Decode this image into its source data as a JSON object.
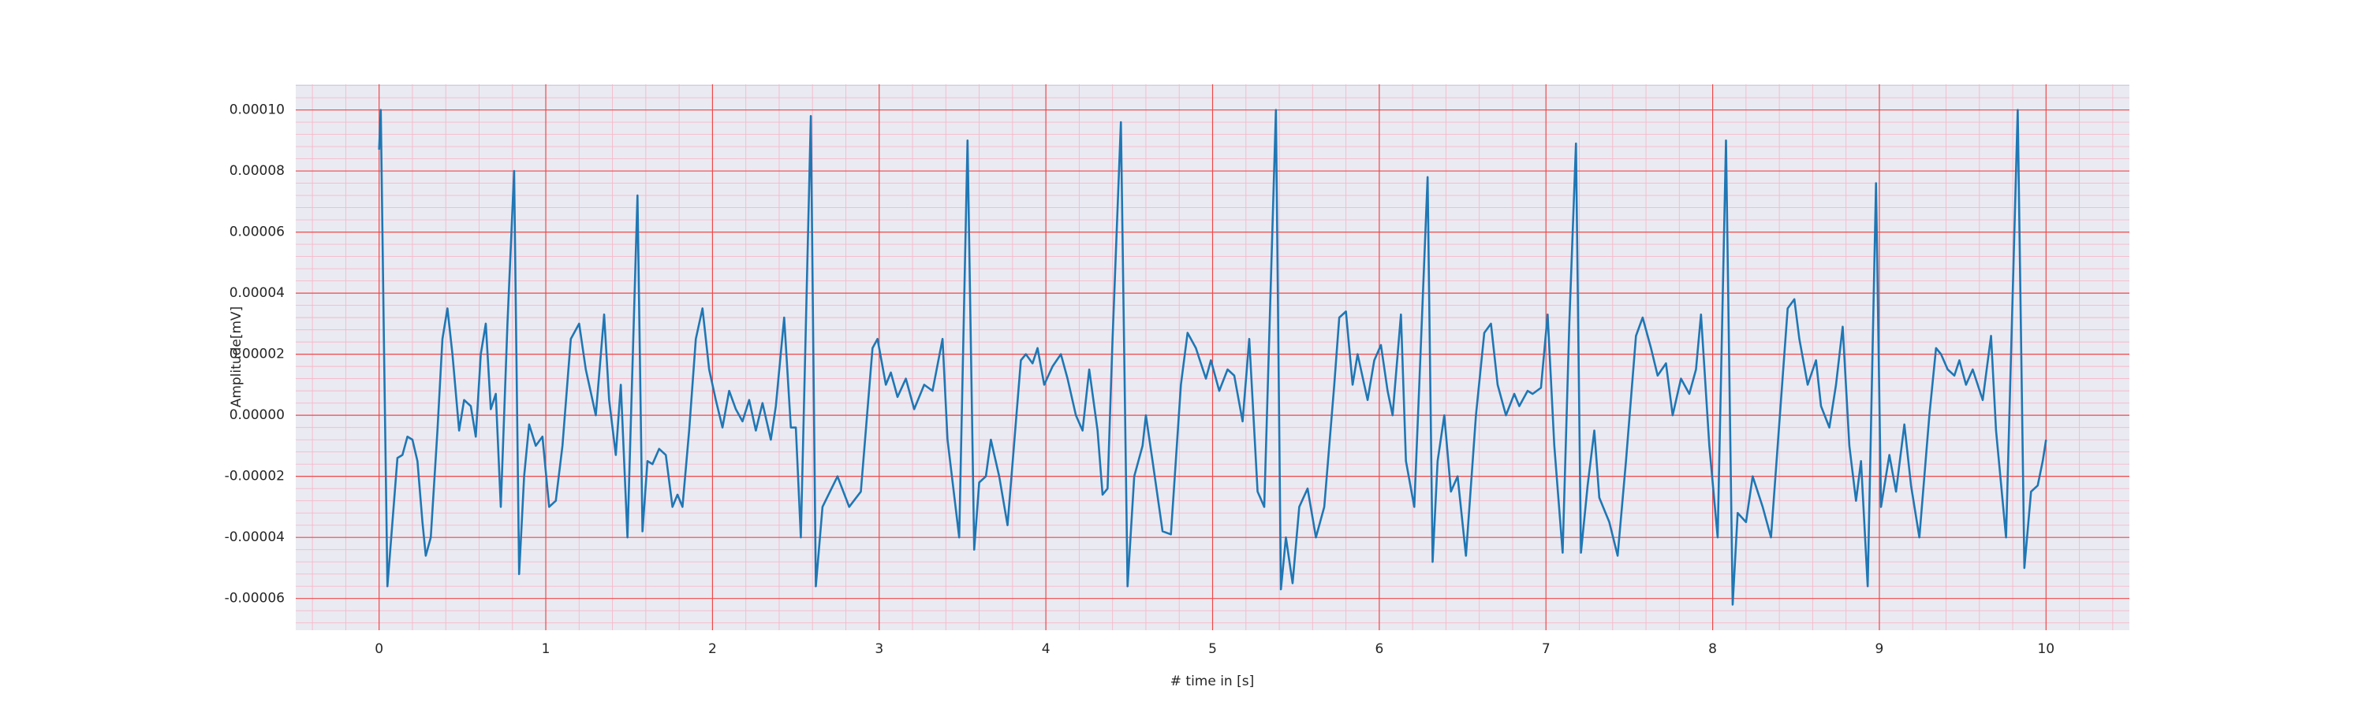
{
  "chart_data": {
    "type": "line",
    "xlabel": "# time in [s]",
    "ylabel": "Amplitude[mV]",
    "xlim": [
      -0.5,
      10.5
    ],
    "ylim": [
      -7.04e-05,
      0.0001084
    ],
    "xticks": [
      0,
      1,
      2,
      3,
      4,
      5,
      6,
      7,
      8,
      9,
      10
    ],
    "yticks": [
      {
        "value": -6e-05,
        "label": "-0.00006"
      },
      {
        "value": -4e-05,
        "label": "-0.00004"
      },
      {
        "value": -2e-05,
        "label": "-0.00002"
      },
      {
        "value": 0,
        "label": "0.00000"
      },
      {
        "value": 2e-05,
        "label": "0.00002"
      },
      {
        "value": 4e-05,
        "label": "0.00004"
      },
      {
        "value": 6e-05,
        "label": "0.00006"
      },
      {
        "value": 8e-05,
        "label": "0.00008"
      },
      {
        "value": 0.0001,
        "label": "0.00010"
      }
    ],
    "grid": true,
    "minor_divisions": 5,
    "color": "#1f77b4",
    "x": [
      0,
      0.01,
      0.03,
      0.05,
      0.08,
      0.11,
      0.14,
      0.17,
      0.2,
      0.23,
      0.26,
      0.28,
      0.31,
      0.35,
      0.38,
      0.41,
      0.44,
      0.48,
      0.51,
      0.55,
      0.58,
      0.61,
      0.64,
      0.67,
      0.7,
      0.73,
      0.77,
      0.81,
      0.84,
      0.87,
      0.9,
      0.94,
      0.98,
      1.02,
      1.06,
      1.1,
      1.15,
      1.2,
      1.24,
      1.28,
      1.3,
      1.35,
      1.38,
      1.42,
      1.45,
      1.49,
      1.55,
      1.58,
      1.61,
      1.64,
      1.68,
      1.72,
      1.76,
      1.79,
      1.82,
      1.86,
      1.9,
      1.94,
      1.98,
      2.02,
      2.06,
      2.1,
      2.14,
      2.18,
      2.22,
      2.26,
      2.3,
      2.35,
      2.38,
      2.43,
      2.47,
      2.5,
      2.53,
      2.59,
      2.62,
      2.66,
      2.75,
      2.82,
      2.89,
      2.96,
      2.99,
      3.04,
      3.07,
      3.11,
      3.16,
      3.21,
      3.27,
      3.32,
      3.38,
      3.41,
      3.48,
      3.53,
      3.57,
      3.6,
      3.64,
      3.67,
      3.72,
      3.77,
      3.85,
      3.88,
      3.92,
      3.95,
      3.99,
      4.04,
      4.09,
      4.13,
      4.18,
      4.22,
      4.26,
      4.31,
      4.34,
      4.37,
      4.4,
      4.45,
      4.49,
      4.53,
      4.58,
      4.6,
      4.64,
      4.7,
      4.75,
      4.81,
      4.85,
      4.9,
      4.96,
      4.99,
      5.04,
      5.09,
      5.13,
      5.18,
      5.22,
      5.27,
      5.31,
      5.38,
      5.41,
      5.44,
      5.48,
      5.52,
      5.57,
      5.62,
      5.67,
      5.73,
      5.76,
      5.8,
      5.84,
      5.87,
      5.93,
      5.97,
      6.01,
      6.05,
      6.08,
      6.13,
      6.16,
      6.21,
      6.24,
      6.29,
      6.32,
      6.35,
      6.39,
      6.43,
      6.47,
      6.52,
      6.58,
      6.63,
      6.67,
      6.71,
      6.76,
      6.81,
      6.84,
      6.89,
      6.92,
      6.97,
      7.01,
      7.05,
      7.1,
      7.14,
      7.18,
      7.21,
      7.25,
      7.29,
      7.32,
      7.38,
      7.43,
      7.48,
      7.54,
      7.58,
      7.63,
      7.67,
      7.72,
      7.76,
      7.81,
      7.86,
      7.9,
      7.93,
      7.98,
      8.03,
      8.08,
      8.12,
      8.15,
      8.2,
      8.24,
      8.3,
      8.35,
      8.41,
      8.45,
      8.49,
      8.52,
      8.57,
      8.62,
      8.65,
      8.7,
      8.74,
      8.78,
      8.82,
      8.86,
      8.89,
      8.93,
      8.98,
      9.01,
      9.06,
      9.1,
      9.15,
      9.19,
      9.24,
      9.3,
      9.34,
      9.37,
      9.41,
      9.45,
      9.48,
      9.52,
      9.56,
      9.62,
      9.67,
      9.7,
      9.76,
      9.83,
      9.87,
      9.91,
      9.95,
      9.98,
      10
    ],
    "values": [
      8.7e-05,
      0.0001,
      2e-05,
      -5.6e-05,
      -3.5e-05,
      -1.4e-05,
      -1.3e-05,
      -7e-06,
      -8e-06,
      -1.5e-05,
      -3.5e-05,
      -4.6e-05,
      -4e-05,
      -5e-06,
      2.5e-05,
      3.5e-05,
      2e-05,
      -5e-06,
      5e-06,
      3e-06,
      -7e-06,
      2e-05,
      3e-05,
      2e-06,
      7e-06,
      -3e-05,
      3e-05,
      8e-05,
      -5.2e-05,
      -2e-05,
      -3e-06,
      -1e-05,
      -7e-06,
      -3e-05,
      -2.8e-05,
      -1e-05,
      2.5e-05,
      3e-05,
      1.5e-05,
      5e-06,
      0,
      3.3e-05,
      5e-06,
      -1.3e-05,
      1e-05,
      -4e-05,
      7.2e-05,
      -3.8e-05,
      -1.5e-05,
      -1.6e-05,
      -1.1e-05,
      -1.3e-05,
      -3e-05,
      -2.6e-05,
      -3e-05,
      -5e-06,
      2.5e-05,
      3.5e-05,
      1.5e-05,
      5e-06,
      -4e-06,
      8e-06,
      2e-06,
      -2e-06,
      5e-06,
      -5e-06,
      4e-06,
      -8e-06,
      3e-06,
      3.2e-05,
      -4e-06,
      -4e-06,
      -4e-05,
      9.8e-05,
      -5.6e-05,
      -3e-05,
      -2e-05,
      -3e-05,
      -2.5e-05,
      2.2e-05,
      2.5e-05,
      1e-05,
      1.4e-05,
      6e-06,
      1.2e-05,
      2e-06,
      1e-05,
      8e-06,
      2.5e-05,
      -8e-06,
      -4e-05,
      9e-05,
      -4.4e-05,
      -2.2e-05,
      -2e-05,
      -8e-06,
      -2e-05,
      -3.6e-05,
      1.8e-05,
      2e-05,
      1.7e-05,
      2.2e-05,
      1e-05,
      1.6e-05,
      2e-05,
      1.2e-05,
      0,
      -5e-06,
      1.5e-05,
      -5e-06,
      -2.6e-05,
      -2.4e-05,
      2.5e-05,
      9.6e-05,
      -5.6e-05,
      -2e-05,
      -1e-05,
      0,
      -1.5e-05,
      -3.8e-05,
      -3.9e-05,
      1e-05,
      2.7e-05,
      2.2e-05,
      1.2e-05,
      1.8e-05,
      8e-06,
      1.5e-05,
      1.3e-05,
      -2e-06,
      2.5e-05,
      -2.5e-05,
      -3e-05,
      0.0001,
      -5.7e-05,
      -4e-05,
      -5.5e-05,
      -3e-05,
      -2.4e-05,
      -4e-05,
      -3e-05,
      1e-05,
      3.2e-05,
      3.4e-05,
      1e-05,
      2e-05,
      5e-06,
      1.8e-05,
      2.3e-05,
      8e-06,
      0,
      3.3e-05,
      -1.5e-05,
      -3e-05,
      1e-05,
      7.8e-05,
      -4.8e-05,
      -1.5e-05,
      0,
      -2.5e-05,
      -2e-05,
      -4.6e-05,
      0,
      2.7e-05,
      3e-05,
      1e-05,
      0,
      7e-06,
      3e-06,
      8e-06,
      7e-06,
      9e-06,
      3.3e-05,
      -1e-05,
      -4.5e-05,
      3e-05,
      8.9e-05,
      -4.5e-05,
      -2.3e-05,
      -5e-06,
      -2.7e-05,
      -3.5e-05,
      -4.6e-05,
      -1.5e-05,
      2.6e-05,
      3.2e-05,
      2.2e-05,
      1.3e-05,
      1.7e-05,
      0,
      1.2e-05,
      7e-06,
      1.5e-05,
      3.3e-05,
      -1e-05,
      -4e-05,
      9e-05,
      -6.2e-05,
      -3.2e-05,
      -3.5e-05,
      -2e-05,
      -3e-05,
      -4e-05,
      5e-06,
      3.5e-05,
      3.8e-05,
      2.5e-05,
      1e-05,
      1.8e-05,
      3e-06,
      -4e-06,
      1e-05,
      2.9e-05,
      -1e-05,
      -2.8e-05,
      -1.5e-05,
      -5.6e-05,
      7.6e-05,
      -3e-05,
      -1.3e-05,
      -2.5e-05,
      -3e-06,
      -2.3e-05,
      -4e-05,
      0,
      2.2e-05,
      2e-05,
      1.5e-05,
      1.3e-05,
      1.8e-05,
      1e-05,
      1.5e-05,
      5e-06,
      2.6e-05,
      -5e-06,
      -4e-05,
      0.0001,
      -5e-05,
      -2.5e-05,
      -2.3e-05,
      -1.5e-05,
      -8e-06
    ]
  }
}
